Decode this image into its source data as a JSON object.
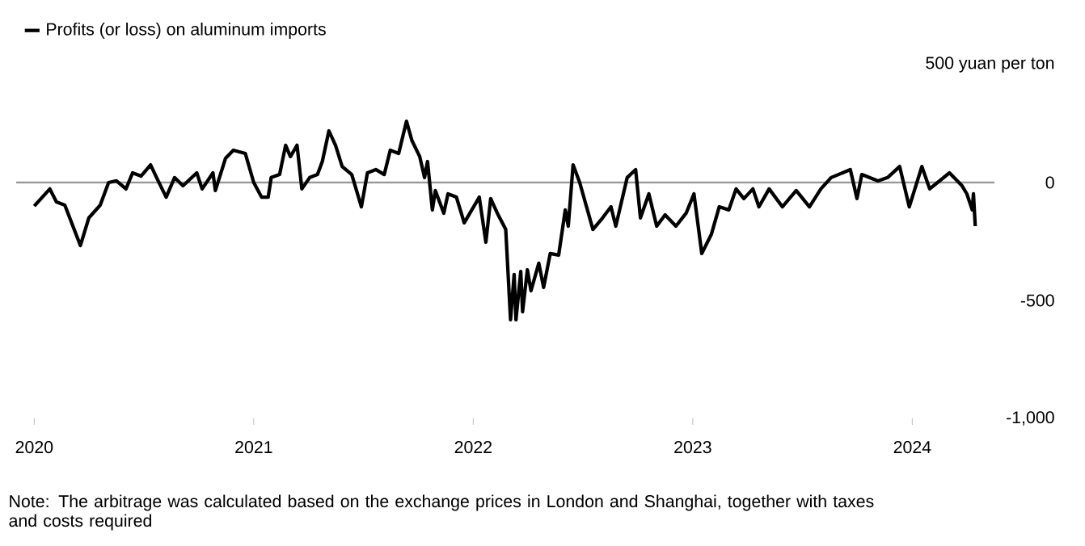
{
  "chart_data": {
    "type": "line",
    "x": [
      "2020-01-01",
      "2020-01-27",
      "2020-02-07",
      "2020-02-21",
      "2020-03-18",
      "2020-04-01",
      "2020-04-20",
      "2020-05-04",
      "2020-05-17",
      "2020-06-02",
      "2020-06-13",
      "2020-06-27",
      "2020-07-13",
      "2020-07-23",
      "2020-08-08",
      "2020-08-22",
      "2020-09-05",
      "2020-09-28",
      "2020-10-07",
      "2020-10-25",
      "2020-10-29",
      "2020-11-15",
      "2020-11-28",
      "2020-12-18",
      "2021-01-01",
      "2021-01-14",
      "2021-01-25",
      "2021-01-30",
      "2021-02-13",
      "2021-02-23",
      "2021-03-03",
      "2021-03-14",
      "2021-03-22",
      "2021-04-04",
      "2021-04-17",
      "2021-04-25",
      "2021-05-06",
      "2021-05-17",
      "2021-05-28",
      "2021-06-13",
      "2021-06-29",
      "2021-07-09",
      "2021-07-23",
      "2021-08-06",
      "2021-08-16",
      "2021-08-30",
      "2021-09-12",
      "2021-09-21",
      "2021-10-04",
      "2021-10-12",
      "2021-10-17",
      "2021-10-25",
      "2021-10-30",
      "2021-11-13",
      "2021-11-20",
      "2021-12-04",
      "2021-12-17",
      "2022-01-11",
      "2022-01-22",
      "2022-01-30",
      "2022-02-10",
      "2022-02-24",
      "2022-03-04",
      "2022-03-10",
      "2022-03-13",
      "2022-03-21",
      "2022-03-24",
      "2022-04-01",
      "2022-04-07",
      "2022-04-20",
      "2022-04-28",
      "2022-05-09",
      "2022-05-23",
      "2022-06-03",
      "2022-06-08",
      "2022-06-16",
      "2022-06-27",
      "2022-07-19",
      "2022-08-04",
      "2022-08-18",
      "2022-08-26",
      "2022-09-14",
      "2022-09-28",
      "2022-10-06",
      "2022-10-20",
      "2022-11-02",
      "2022-11-16",
      "2022-12-04",
      "2022-12-21",
      "2023-01-03",
      "2023-01-16",
      "2023-02-01",
      "2023-02-14",
      "2023-03-02",
      "2023-03-14",
      "2023-03-27",
      "2023-04-11",
      "2023-04-21",
      "2023-05-08",
      "2023-05-30",
      "2023-06-22",
      "2023-07-14",
      "2023-08-02",
      "2023-08-19",
      "2023-09-20",
      "2023-10-01",
      "2023-10-09",
      "2023-11-05",
      "2023-11-21",
      "2023-12-11",
      "2023-12-27",
      "2024-01-17",
      "2024-01-30",
      "2024-03-03",
      "2024-03-24",
      "2024-04-01",
      "2024-04-10",
      "2024-04-12",
      "2024-04-15"
    ],
    "series": [
      {
        "name": "Profits (or loss) on aluminum imports",
        "color": "#000000",
        "values": [
          -100,
          -27,
          -82,
          -96,
          -267,
          -150,
          -96,
          0,
          7,
          -27,
          41,
          27,
          75,
          21,
          -62,
          21,
          -14,
          41,
          -27,
          41,
          -34,
          103,
          137,
          123,
          0,
          -62,
          -62,
          21,
          34,
          158,
          110,
          158,
          -27,
          21,
          34,
          89,
          219,
          158,
          68,
          34,
          -103,
          41,
          55,
          34,
          137,
          123,
          260,
          178,
          110,
          21,
          89,
          -116,
          -34,
          -130,
          -48,
          -62,
          -171,
          -62,
          -253,
          -68,
          -130,
          -199,
          -582,
          -390,
          -582,
          -377,
          -548,
          -370,
          -459,
          -342,
          -445,
          -301,
          -308,
          -116,
          -185,
          75,
          0,
          -199,
          -150,
          -103,
          -185,
          21,
          55,
          -150,
          -48,
          -185,
          -137,
          -185,
          -130,
          -48,
          -301,
          -219,
          -103,
          -116,
          -27,
          -68,
          -27,
          -103,
          -27,
          -103,
          -34,
          -103,
          -27,
          21,
          55,
          -68,
          34,
          7,
          21,
          68,
          -103,
          68,
          -27,
          41,
          -14,
          -48,
          -116,
          -48,
          -185
        ]
      }
    ],
    "xlim": [
      "2019-12-02",
      "2024-05-17"
    ],
    "xticks": [
      "2020",
      "2021",
      "2022",
      "2023",
      "2024"
    ],
    "ylim": [
      -1000,
      500
    ],
    "yticks": [
      {
        "value": 500,
        "label": "500 yuan per ton"
      },
      0,
      -500,
      {
        "value": -1000,
        "label": "-1,000"
      }
    ],
    "ref_lines": [
      {
        "axis": "y",
        "value": 0,
        "color": "#999999"
      }
    ],
    "legend": "top left",
    "line_style": "solid",
    "marker": "none",
    "grid": false,
    "annotations": [
      "Note: The arbitrage was calculated based on the exchange prices in London and Shanghai, together with taxes and costs required"
    ]
  }
}
